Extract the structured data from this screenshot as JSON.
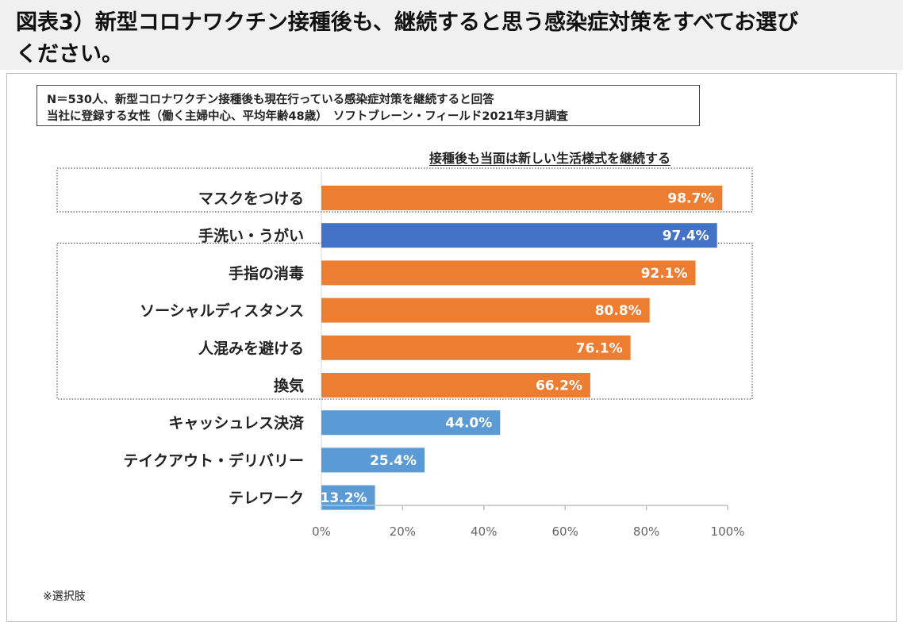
{
  "page": {
    "title_line1": "図表3）新型コロナワクチン接種後も、継続すると思う感染症対策をすべてお選び",
    "title_line2": "ください。",
    "info_line1": "N＝530人、新型コロナワクチン接種後も現在行っている感染症対策を継続すると回答",
    "info_line2": "当社に登録する女性（働く主婦中心、平均年齢48歳）　ソフトブレーン・フィールド2021年3月調査",
    "subtitle": "接種後も当面は新しい生活様式を継続する",
    "note": "※選択肢"
  },
  "colors": {
    "orange": "#ed7d31",
    "dark_blue": "#4472c4",
    "light_blue": "#5b9bd5"
  },
  "chart_data": {
    "type": "bar",
    "orientation": "horizontal",
    "unit": "%",
    "xlim": [
      0,
      100
    ],
    "ticks": [
      "0%",
      "20%",
      "40%",
      "60%",
      "80%",
      "100%"
    ],
    "tick_values": [
      0,
      20,
      40,
      60,
      80,
      100
    ],
    "categories": [
      "マスクをつける",
      "手洗い・うがい",
      "手指の消毒",
      "ソーシャルディスタンス",
      "人混みを避ける",
      "換気",
      "キャッシュレス決済",
      "テイクアウト・デリバリー",
      "テレワーク"
    ],
    "values": [
      98.7,
      97.4,
      92.1,
      80.8,
      76.1,
      66.2,
      44.0,
      25.4,
      13.2
    ],
    "value_labels": [
      "98.7%",
      "97.4%",
      "92.1%",
      "80.8%",
      "76.1%",
      "66.2%",
      "44.0%",
      "25.4%",
      "13.2%"
    ],
    "bar_colors": [
      "orange",
      "dark_blue",
      "orange",
      "orange",
      "orange",
      "orange",
      "light_blue",
      "light_blue",
      "light_blue"
    ],
    "highlight_groups": [
      [
        0,
        0
      ],
      [
        2,
        5
      ]
    ]
  }
}
